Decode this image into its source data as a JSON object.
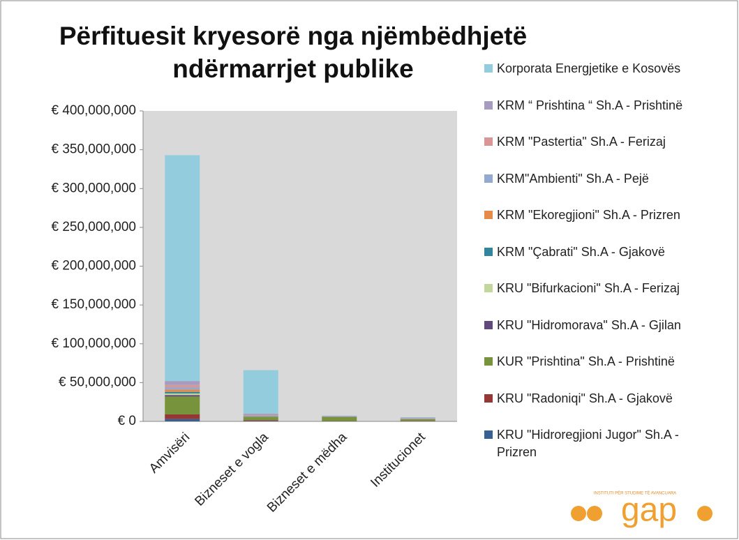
{
  "chart_data": {
    "type": "stacked_bar",
    "title": "Përfituesit kryesorë nga njëmbëdhjetë ndërmarrjet publike",
    "categories": [
      "Amvisëri",
      "Bizneset e vogla",
      "Bizneset e mëdha",
      "Institucionet"
    ],
    "series": [
      {
        "name": "Korporata Energjetike e Kosovës",
        "color": "#93cddd",
        "values": [
          291000000,
          56000000,
          500000,
          500000
        ]
      },
      {
        "name": "KRM “ Prishtina “ Sh.A - Prishtinë",
        "color": "#a79bc0",
        "values": [
          5000000,
          1500000,
          100000,
          1000000
        ]
      },
      {
        "name": "KRM \"Pastertia\" Sh.A - Ferizaj",
        "color": "#d99694",
        "values": [
          3000000,
          500000,
          200000,
          200000
        ]
      },
      {
        "name": "KRM\"Ambienti\" Sh.A - Pejë",
        "color": "#95a8cf",
        "values": [
          3000000,
          500000,
          200000,
          200000
        ]
      },
      {
        "name": "KRM \"Ekoregjioni\" Sh.A - Prizren",
        "color": "#e48b47",
        "values": [
          3000000,
          500000,
          200000,
          200000
        ]
      },
      {
        "name": "KRM \"Çabrati\" Sh.A - Gjakovë",
        "color": "#31859c",
        "values": [
          2000000,
          500000,
          200000,
          200000
        ]
      },
      {
        "name": "KRU \"Bifurkacioni\" Sh.A - Ferizaj",
        "color": "#c3d69b",
        "values": [
          2000000,
          500000,
          300000,
          200000
        ]
      },
      {
        "name": "KRU \"Hidromorava\" Sh.A - Gjilan",
        "color": "#604a7b",
        "values": [
          2000000,
          500000,
          300000,
          200000
        ]
      },
      {
        "name": "KUR \"Prishtina\" Sh.A - Prishtinë",
        "color": "#77933c",
        "values": [
          23000000,
          4000000,
          5000000,
          2000000
        ]
      },
      {
        "name": "KRU \"Radoniqi\" Sh.A - Gjakovë",
        "color": "#953735",
        "values": [
          6000000,
          1000000,
          300000,
          500000
        ]
      },
      {
        "name": "KRU \"Hidroregjioni Jugor\" Sh.A - Prizren",
        "color": "#366092",
        "values": [
          3000000,
          500000,
          200000,
          200000
        ]
      }
    ],
    "ylim": [
      0,
      400000000
    ],
    "yticks": [
      {
        "value": 0,
        "label": "€ 0"
      },
      {
        "value": 50000000,
        "label": "€ 50,000,000"
      },
      {
        "value": 100000000,
        "label": "€ 100,000,000"
      },
      {
        "value": 150000000,
        "label": "€ 150,000,000"
      },
      {
        "value": 200000000,
        "label": "€ 200,000,000"
      },
      {
        "value": 250000000,
        "label": "€ 250,000,000"
      },
      {
        "value": 300000000,
        "label": "€ 300,000,000"
      },
      {
        "value": 350000000,
        "label": "€ 350,000,000"
      },
      {
        "value": 400000000,
        "label": "€ 400,000,000"
      }
    ],
    "legend": "right"
  },
  "logo": {
    "text": "gap",
    "tagline": "INSTITUTI PËR STUDIME TË AVANCUARA"
  }
}
